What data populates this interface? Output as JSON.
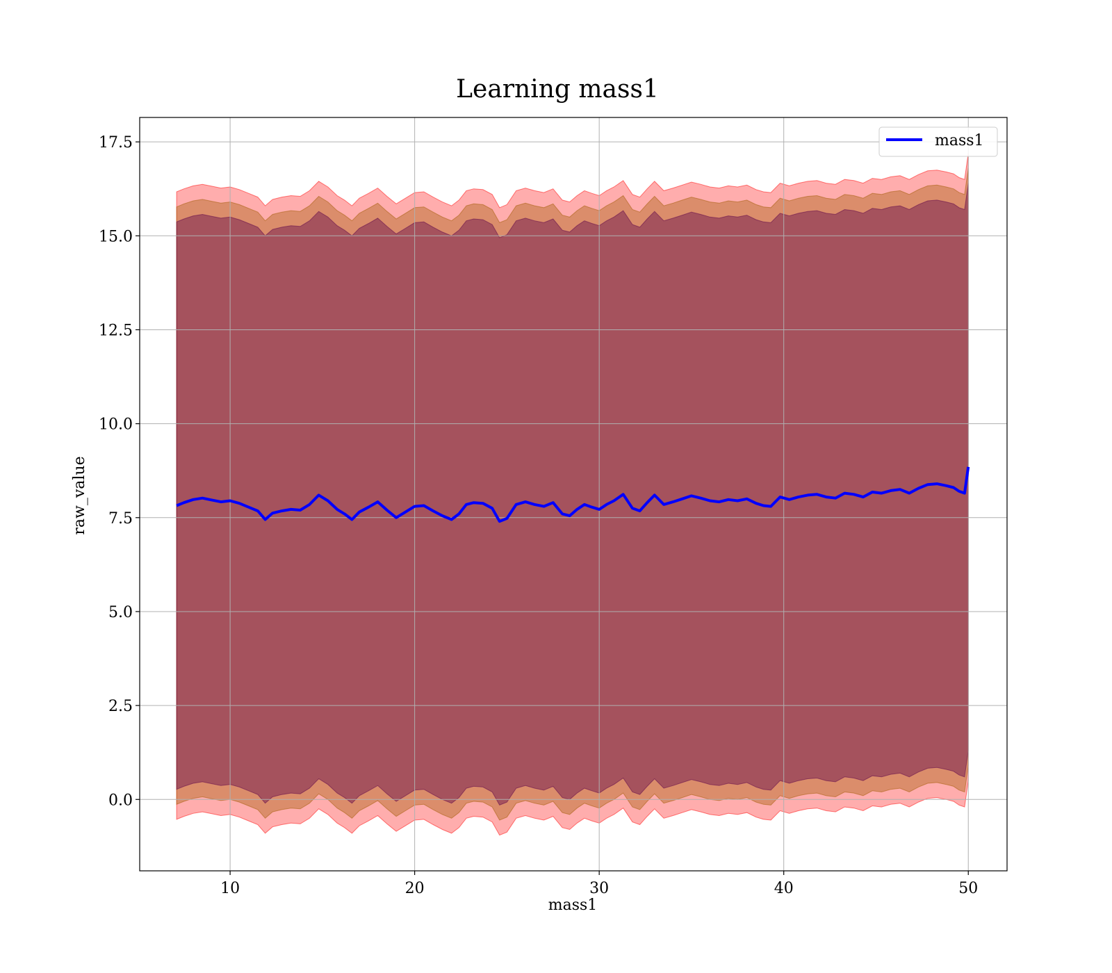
{
  "chart_data": {
    "type": "line",
    "title": "Learning mass1",
    "xlabel": "mass1",
    "ylabel": "raw_value",
    "xlim": [
      5.1,
      52.1
    ],
    "ylim": [
      -1.9,
      18.15
    ],
    "x_ticks": [
      10,
      20,
      30,
      40,
      50
    ],
    "x_tick_labels": [
      "10",
      "20",
      "30",
      "40",
      "50"
    ],
    "y_ticks": [
      0.0,
      2.5,
      5.0,
      7.5,
      10.0,
      12.5,
      15.0,
      17.5
    ],
    "y_tick_labels": [
      "0.0",
      "2.5",
      "5.0",
      "7.5",
      "10.0",
      "12.5",
      "15.0",
      "17.5"
    ],
    "grid": true,
    "legend": {
      "position": "top-right",
      "entries": [
        "mass1"
      ]
    },
    "colors": {
      "line": "#0000ff",
      "band_outer": "#ff0000",
      "band_middle": "#a05a00",
      "band_inner": "#5a004a",
      "grid": "#b0b0b0"
    },
    "series": [
      {
        "name": "mass1",
        "x": [
          7.1,
          7.5,
          8.0,
          8.5,
          9.0,
          9.5,
          10.0,
          10.5,
          11.0,
          11.5,
          11.9,
          12.3,
          12.8,
          13.3,
          13.8,
          14.3,
          14.8,
          15.3,
          15.8,
          16.2,
          16.6,
          17.0,
          17.5,
          18.0,
          18.5,
          19.0,
          19.5,
          20.0,
          20.5,
          21.0,
          21.5,
          22.0,
          22.4,
          22.8,
          23.2,
          23.7,
          24.2,
          24.6,
          25.0,
          25.5,
          26.0,
          26.5,
          27.0,
          27.5,
          28.0,
          28.4,
          28.8,
          29.2,
          29.6,
          30.0,
          30.4,
          30.8,
          31.3,
          31.8,
          32.2,
          32.6,
          33.0,
          33.5,
          34.0,
          34.5,
          35.0,
          35.5,
          36.0,
          36.5,
          37.0,
          37.5,
          38.0,
          38.5,
          38.9,
          39.3,
          39.8,
          40.3,
          40.8,
          41.3,
          41.8,
          42.3,
          42.8,
          43.3,
          43.8,
          44.3,
          44.8,
          45.3,
          45.8,
          46.3,
          46.8,
          47.3,
          47.8,
          48.3,
          48.8,
          49.2,
          49.5,
          49.8,
          50.0
        ],
        "y": [
          7.82,
          7.9,
          7.98,
          8.02,
          7.97,
          7.92,
          7.95,
          7.88,
          7.78,
          7.68,
          7.45,
          7.62,
          7.68,
          7.72,
          7.7,
          7.85,
          8.1,
          7.95,
          7.72,
          7.6,
          7.45,
          7.65,
          7.78,
          7.92,
          7.7,
          7.5,
          7.65,
          7.8,
          7.82,
          7.68,
          7.55,
          7.45,
          7.6,
          7.85,
          7.9,
          7.88,
          7.75,
          7.4,
          7.48,
          7.85,
          7.92,
          7.85,
          7.8,
          7.9,
          7.6,
          7.55,
          7.72,
          7.85,
          7.78,
          7.72,
          7.85,
          7.95,
          8.12,
          7.75,
          7.68,
          7.9,
          8.1,
          7.85,
          7.92,
          8.0,
          8.08,
          8.02,
          7.95,
          7.92,
          7.98,
          7.95,
          8.0,
          7.88,
          7.82,
          7.8,
          8.05,
          7.98,
          8.05,
          8.1,
          8.12,
          8.05,
          8.02,
          8.15,
          8.12,
          8.05,
          8.18,
          8.15,
          8.22,
          8.25,
          8.15,
          8.28,
          8.38,
          8.4,
          8.35,
          8.3,
          8.2,
          8.15,
          8.85
        ]
      }
    ],
    "bands": [
      {
        "upper_offset": 8.35,
        "lower_offset": -8.35
      },
      {
        "upper_offset": 7.95,
        "lower_offset": -7.95
      },
      {
        "upper_offset": 7.55,
        "lower_offset": -7.55
      }
    ]
  }
}
